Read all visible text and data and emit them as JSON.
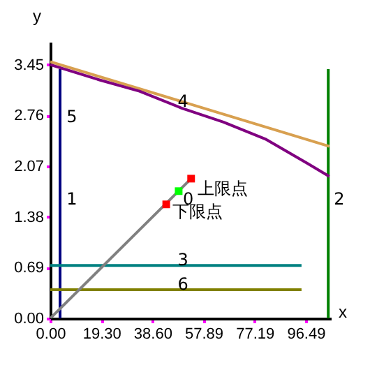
{
  "chart_data": {
    "type": "line",
    "xlabel": "x",
    "ylabel": "y",
    "xlim": [
      0,
      106
    ],
    "ylim": [
      0,
      3.76
    ],
    "xticks": [
      {
        "value": 0,
        "label": "0.00"
      },
      {
        "value": 19.3,
        "label": "19.30"
      },
      {
        "value": 38.6,
        "label": "38.60"
      },
      57.89,
      77.19,
      96.49
    ],
    "yticks": [
      {
        "value": 0,
        "label": "0.00"
      },
      0.69,
      1.38,
      2.07,
      2.76,
      3.45
    ],
    "series": [
      {
        "color": "#000080",
        "x": [
          3.7,
          3.7
        ],
        "values": [
          0,
          3.39
        ]
      },
      {
        "color": "#008000",
        "x": [
          105,
          105
        ],
        "values": [
          0,
          3.39
        ]
      },
      {
        "color": "#d8a050",
        "x": [
          0,
          49.6,
          105.4
        ],
        "values": [
          3.49,
          2.95,
          2.34
        ]
      },
      {
        "color": "#800080",
        "x": [
          0,
          17.9,
          33.7,
          49.6,
          65.4,
          81.2,
          97,
          105.4
        ],
        "values": [
          3.45,
          3.25,
          3.09,
          2.86,
          2.67,
          2.44,
          2.11,
          1.93
        ]
      },
      {
        "color": "#008080",
        "x": [
          0,
          94.9
        ],
        "values": [
          0.72,
          0.72
        ]
      },
      {
        "color": "#808000",
        "x": [
          0,
          94.9
        ],
        "values": [
          0.39,
          0.39
        ]
      },
      {
        "color": "#808080",
        "x": [
          0,
          53.2
        ],
        "values": [
          0,
          1.9
        ]
      },
      {
        "type": "scatter",
        "marker": "square",
        "x": [
          53.2,
          48.5,
          43.8
        ],
        "values": [
          1.9,
          1.73,
          1.55
        ],
        "colors": [
          "#ff0000",
          "#00ff00",
          "#ff0000"
        ]
      }
    ],
    "annotations": [
      {
        "text": "5",
        "x": 4,
        "y": 2.74
      },
      {
        "text": "1",
        "x": 4,
        "y": 1.62
      },
      {
        "text": "2",
        "x": 105,
        "y": 1.62
      },
      {
        "text": "4",
        "x": 46,
        "y": 2.95
      },
      {
        "text": "3",
        "x": 46,
        "y": 0.8
      },
      {
        "text": "6",
        "x": 46,
        "y": 0.47
      },
      {
        "text": "0",
        "x": 48,
        "y": 1.62
      },
      {
        "text": "上限点",
        "x": 53.5,
        "y": 1.77
      },
      {
        "text": "下限点",
        "x": 44,
        "y": 1.45
      }
    ]
  }
}
